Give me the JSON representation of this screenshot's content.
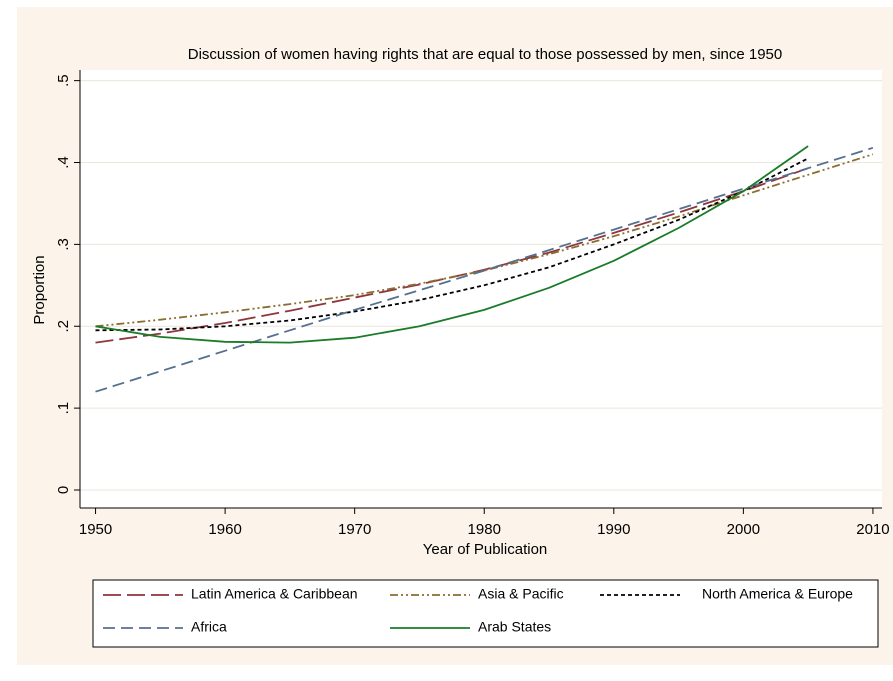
{
  "chart_data": {
    "type": "line",
    "title": "Discussion of women having rights that are equal to those possessed by men, since 1950",
    "x_label": "Year of Publication",
    "y_label": "Proportion",
    "x": [
      1950,
      1955,
      1960,
      1965,
      1970,
      1975,
      1980,
      1985,
      1990,
      1995,
      2000,
      2005,
      2010
    ],
    "series": [
      {
        "name": "Latin America & Caribbean",
        "color": "#90353b",
        "dash": "18 6",
        "values": [
          0.18,
          0.191,
          0.204,
          0.219,
          0.235,
          0.251,
          0.269,
          0.29,
          0.314,
          0.339,
          0.365,
          0.393,
          null
        ]
      },
      {
        "name": "Asia & Pacific",
        "color": "#8a6d30",
        "dash": "8 3 2 3 2 3",
        "values": [
          0.2,
          0.208,
          0.217,
          0.227,
          0.238,
          0.252,
          0.268,
          0.288,
          0.31,
          0.334,
          0.36,
          0.385,
          0.41
        ]
      },
      {
        "name": "North America & Europe",
        "color": "#000000",
        "dash": "4 3",
        "values": [
          0.195,
          0.196,
          0.2,
          0.207,
          0.218,
          0.232,
          0.25,
          0.272,
          0.3,
          0.33,
          0.365,
          0.405,
          null
        ]
      },
      {
        "name": "Africa",
        "color": "#55708f",
        "dash": "12 6",
        "values": [
          0.12,
          0.145,
          0.17,
          0.195,
          0.22,
          0.244,
          0.268,
          0.293,
          0.318,
          0.343,
          0.368,
          0.393,
          0.418
        ]
      },
      {
        "name": "Arab States",
        "color": "#1a7b28",
        "dash": "none",
        "values": [
          0.2,
          0.187,
          0.181,
          0.18,
          0.186,
          0.2,
          0.22,
          0.247,
          0.28,
          0.32,
          0.365,
          0.42,
          null
        ]
      }
    ],
    "xlim": [
      1948.8,
      2010.7
    ],
    "xticks": [
      1950,
      1960,
      1970,
      1980,
      1990,
      2000,
      2010
    ],
    "ylim": [
      -0.022,
      0.513
    ],
    "yticks": [
      0,
      {
        "value": 0.1,
        "label": ".1"
      },
      {
        "value": 0.2,
        "label": ".2"
      },
      {
        "value": 0.3,
        "label": ".3"
      },
      {
        "value": 0.4,
        "label": ".4"
      },
      {
        "value": 0.5,
        "label": ".5"
      }
    ],
    "grid": true,
    "legend": "bottom"
  }
}
